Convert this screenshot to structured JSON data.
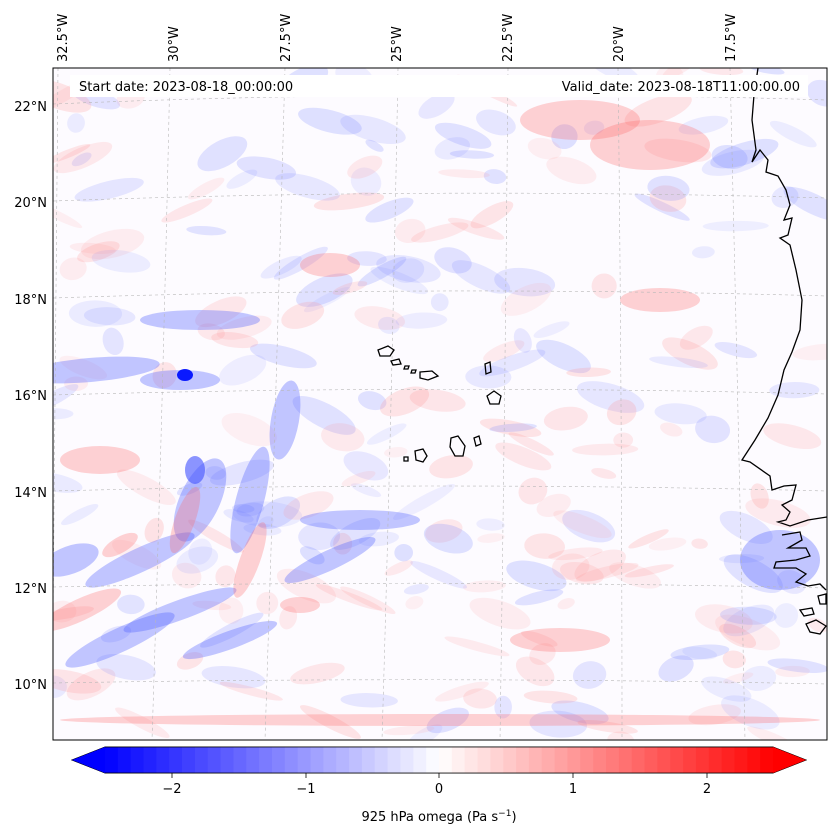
{
  "header": {
    "start_date": "Start date: 2023-08-18_00:00:00",
    "valid_date": "Valid_date: 2023-08-18T11:00:00.00"
  },
  "map": {
    "lon_labels": [
      "32.5°W",
      "30°W",
      "27.5°W",
      "25°W",
      "22.5°W",
      "20°W",
      "17.5°W"
    ],
    "lat_labels": [
      "22°N",
      "20°N",
      "18°N",
      "16°N",
      "14°N",
      "12°N",
      "10°N"
    ],
    "field_colors": {
      "negative": "#0000ff",
      "zero": "#ffffff",
      "positive": "#ff0000"
    }
  },
  "colorbar": {
    "ticks": [
      "−2",
      "−1",
      "0",
      "1",
      "2"
    ],
    "label_prefix": "925 hPa omega (Pa s",
    "label_exp": "−1",
    "label_suffix": ")",
    "range": [
      -2.6,
      2.6
    ]
  }
}
